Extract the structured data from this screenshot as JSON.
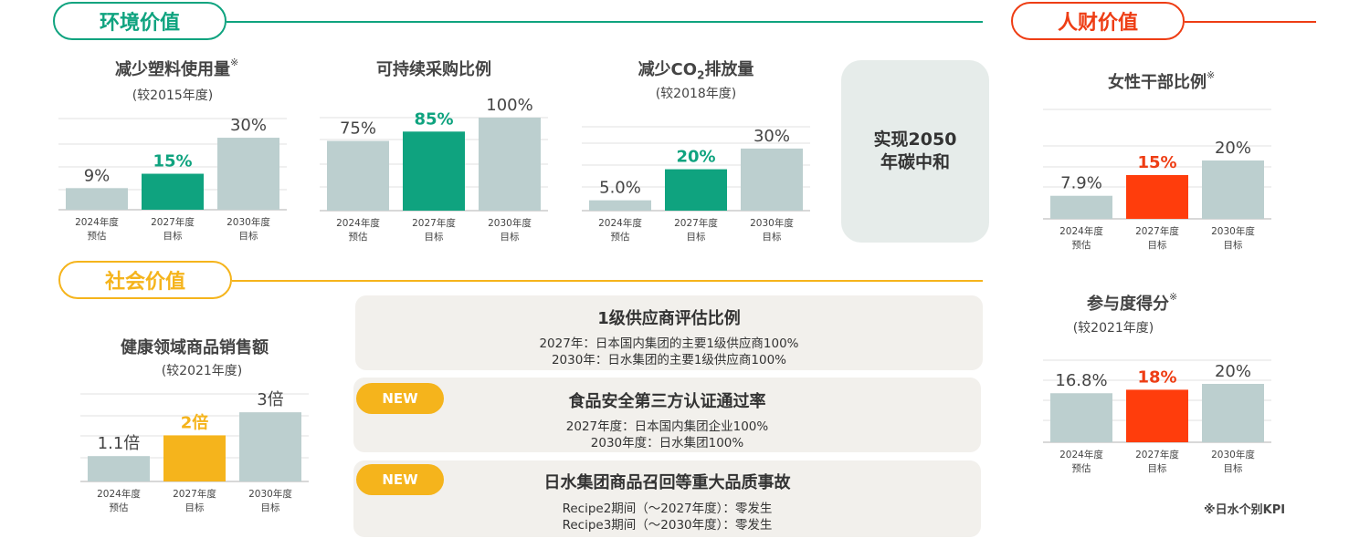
{
  "sections": {
    "env": {
      "label": "环境价值",
      "color": "#0fa37f"
    },
    "hr": {
      "label": "人财价值",
      "color": "#ee3d14"
    },
    "social": {
      "label": "社会价值",
      "color": "#f5b41c"
    }
  },
  "colors": {
    "grey_bar": "#bccfcf",
    "axis": "#cccccc"
  },
  "net_zero": {
    "line1": "实现2050",
    "line2": "年碳中和"
  },
  "footnote": "※日水个别KPI",
  "chart_data": [
    {
      "id": "plastic",
      "type": "bar",
      "title": "减少塑料使用量",
      "title_mark": "※",
      "subtitle": "(较2015年度)",
      "categories": [
        [
          "2024年度",
          "预估"
        ],
        [
          "2027年度",
          "目标"
        ],
        [
          "2030年度",
          "目标"
        ]
      ],
      "values": [
        9,
        15,
        30
      ],
      "labels": [
        "9%",
        "15%",
        "30%"
      ],
      "ylim": [
        0,
        38
      ],
      "colors": [
        "#bccfcf",
        "#0fa37f",
        "#bccfcf"
      ],
      "highlight": 1,
      "highlight_color": "#0fa37f"
    },
    {
      "id": "procure",
      "type": "bar",
      "title": "可持续采购比例",
      "title_mark": "",
      "subtitle": "",
      "categories": [
        [
          "2024年度",
          "预估"
        ],
        [
          "2027年度",
          "目标"
        ],
        [
          "2030年度",
          "目标"
        ]
      ],
      "values": [
        75,
        85,
        100
      ],
      "labels": [
        "75%",
        "85%",
        "100%"
      ],
      "ylim": [
        0,
        100
      ],
      "colors": [
        "#bccfcf",
        "#0fa37f",
        "#bccfcf"
      ],
      "highlight": 1,
      "highlight_color": "#0fa37f"
    },
    {
      "id": "co2",
      "type": "bar",
      "title_parts": [
        "减少CO",
        "2",
        "排放量"
      ],
      "subtitle": "(较2018年度)",
      "categories": [
        [
          "2024年度",
          "预估"
        ],
        [
          "2027年度",
          "目标"
        ],
        [
          "2030年度",
          "目标"
        ]
      ],
      "values": [
        5,
        20,
        30
      ],
      "labels": [
        "5.0%",
        "20%",
        "30%"
      ],
      "ylim": [
        0,
        37
      ],
      "colors": [
        "#bccfcf",
        "#0fa37f",
        "#bccfcf"
      ],
      "highlight": 1,
      "highlight_color": "#0fa37f"
    },
    {
      "id": "women",
      "type": "bar",
      "title": "女性干部比例",
      "title_mark": "※",
      "subtitle": "",
      "categories": [
        [
          "2024年度",
          "预估"
        ],
        [
          "2027年度",
          "目标"
        ],
        [
          "2030年度",
          "目标"
        ]
      ],
      "values": [
        7.9,
        15,
        20
      ],
      "labels": [
        "7.9%",
        "15%",
        "20%"
      ],
      "ylim": [
        0,
        25
      ],
      "colors": [
        "#bccfcf",
        "#ff3d0c",
        "#bccfcf"
      ],
      "highlight": 1,
      "highlight_color": "#ee3d14"
    },
    {
      "id": "engage",
      "type": "bar",
      "title": "参与度得分",
      "title_mark": "※",
      "subtitle": "(较2021年度)",
      "categories": [
        [
          "2024年度",
          "预估"
        ],
        [
          "2027年度",
          "目标"
        ],
        [
          "2030年度",
          "目标"
        ]
      ],
      "values": [
        16.8,
        18,
        20
      ],
      "labels": [
        "16.8%",
        "18%",
        "20%"
      ],
      "ylim": [
        0,
        20
      ],
      "colors": [
        "#bccfcf",
        "#ff3d0c",
        "#bccfcf"
      ],
      "highlight": 1,
      "highlight_color": "#ee3d14"
    },
    {
      "id": "health",
      "type": "bar",
      "title": "健康领域商品销售额",
      "title_mark": "",
      "subtitle": "(较2021年度)",
      "categories": [
        [
          "2024年度",
          "预估"
        ],
        [
          "2027年度",
          "目标"
        ],
        [
          "2030年度",
          "目标"
        ]
      ],
      "values": [
        1.1,
        2,
        3
      ],
      "labels": [
        "1.1倍",
        "2倍",
        "3倍"
      ],
      "ylim": [
        0,
        3.4
      ],
      "colors": [
        "#bccfcf",
        "#f5b41c",
        "#bccfcf"
      ],
      "highlight": 1,
      "highlight_color": "#f5b41c"
    }
  ],
  "cards": [
    {
      "title": "1级供应商评估比例",
      "badge": "",
      "lines": [
        "2027年：日本国内集团的主要1级供应商100%",
        "2030年：日水集团的主要1级供应商100%"
      ]
    },
    {
      "title": "食品安全第三方认证通过率",
      "badge": "NEW",
      "lines": [
        "2027年度：日本国内集团企业100%",
        "2030年度：日水集团100%"
      ]
    },
    {
      "title": "日水集团商品召回等重大品质事故",
      "badge": "NEW",
      "lines": [
        "Recipe2期间（～2027年度）：零发生",
        "Recipe3期间（～2030年度）：零发生"
      ]
    }
  ]
}
